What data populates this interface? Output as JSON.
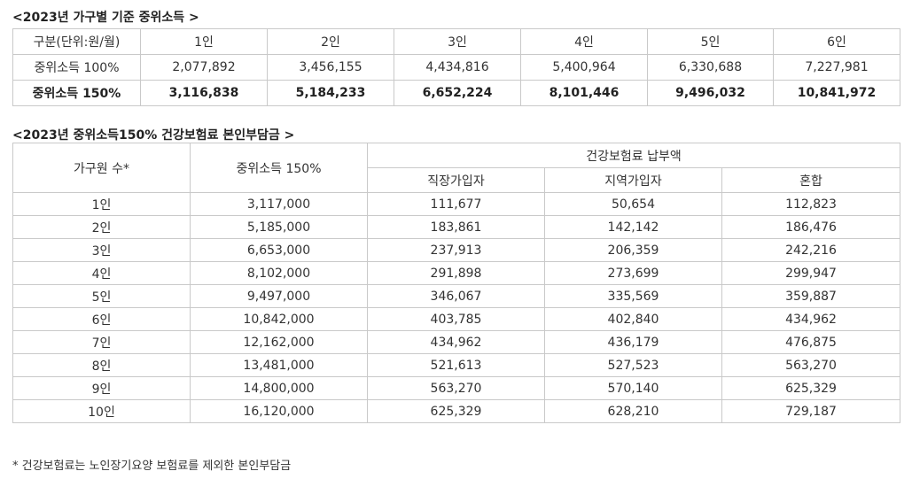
{
  "table1": {
    "title": "<2023년 가구별 기준 중위소득 >",
    "header": [
      "구분(단위:원/월)",
      "1인",
      "2인",
      "3인",
      "4인",
      "5인",
      "6인"
    ],
    "rows": [
      [
        "중위소득 100%",
        "2,077,892",
        "3,456,155",
        "4,434,816",
        "5,400,964",
        "6,330,688",
        "7,227,981"
      ],
      [
        "중위소득 150%",
        "3,116,838",
        "5,184,233",
        "6,652,224",
        "8,101,446",
        "9,496,032",
        "10,841,972"
      ]
    ]
  },
  "table2": {
    "title": "<2023년 중위소득150% 건강보험료 본인부담금 >",
    "header": {
      "household": "가구원 수*",
      "income": "중위소득 150%",
      "premium_group": "건강보험료 납부액",
      "employee": "직장가입자",
      "regional": "지역가입자",
      "mixed": "혼합"
    },
    "rows": [
      [
        "1인",
        "3,117,000",
        "111,677",
        "50,654",
        "112,823"
      ],
      [
        "2인",
        "5,185,000",
        "183,861",
        "142,142",
        "186,476"
      ],
      [
        "3인",
        "6,653,000",
        "237,913",
        "206,359",
        "242,216"
      ],
      [
        "4인",
        "8,102,000",
        "291,898",
        "273,699",
        "299,947"
      ],
      [
        "5인",
        "9,497,000",
        "346,067",
        "335,569",
        "359,887"
      ],
      [
        "6인",
        "10,842,000",
        "403,785",
        "402,840",
        "434,962"
      ],
      [
        "7인",
        "12,162,000",
        "434,962",
        "436,179",
        "476,875"
      ],
      [
        "8인",
        "13,481,000",
        "521,613",
        "527,523",
        "563,270"
      ],
      [
        "9인",
        "14,800,000",
        "563,270",
        "570,140",
        "625,329"
      ],
      [
        "10인",
        "16,120,000",
        "625,329",
        "628,210",
        "729,187"
      ]
    ]
  },
  "footnote": "* 건강보험료는 노인장기요양 보험료를 제외한 본인부담금"
}
